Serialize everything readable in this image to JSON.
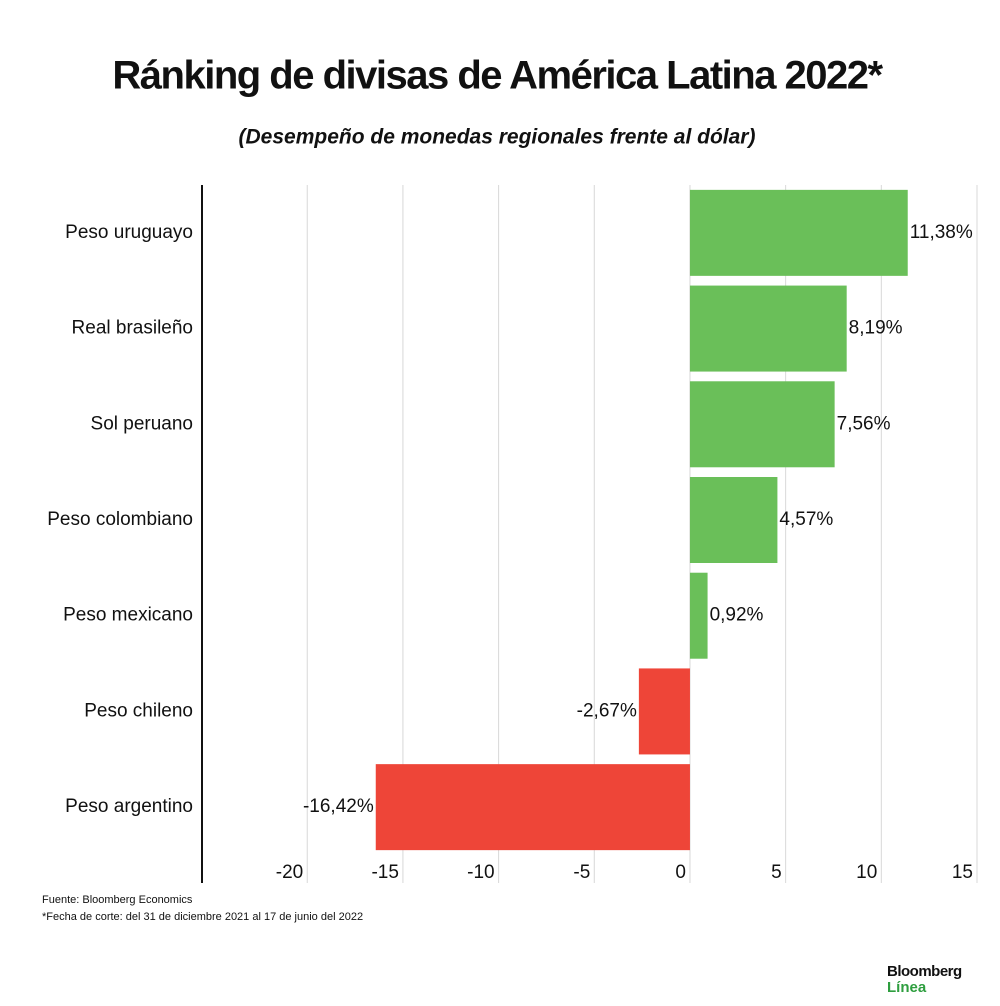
{
  "chart_data": {
    "type": "barh",
    "title": "Ránking de divisas de América Latina 2022*",
    "subtitle": "(Desempeño de monedas regionales frente al dólar)",
    "categories": [
      "Peso uruguayo",
      "Real brasileño",
      "Sol peruano",
      "Peso colombiano",
      "Peso mexicano",
      "Peso chileno",
      "Peso argentino"
    ],
    "values": [
      11.38,
      8.19,
      7.56,
      4.57,
      0.92,
      -2.67,
      -16.42
    ],
    "value_labels": [
      "11,38%",
      "8,19%",
      "7,56%",
      "4,57%",
      "0,92%",
      "-2,67%",
      "-16,42%"
    ],
    "positive_color": "#6abf59",
    "negative_color": "#ee4538",
    "xlim": [
      -25.5,
      15
    ],
    "xticks": [
      -20,
      -15,
      -10,
      -5,
      0,
      5,
      10,
      15
    ],
    "grid": true,
    "source": "Fuente: Bloomberg Economics",
    "note": "*Fecha de corte: del 31 de diciembre 2021 al 17 de junio del 2022",
    "brand": [
      "Bloomberg",
      "Línea"
    ]
  }
}
